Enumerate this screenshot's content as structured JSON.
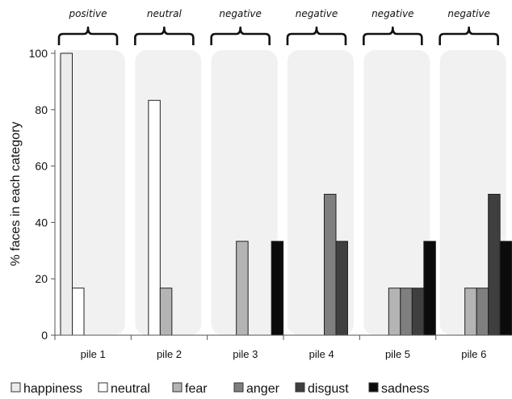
{
  "chart_data": {
    "type": "bar",
    "categories": [
      "pile 1",
      "pile 2",
      "pile 3",
      "pile 4",
      "pile 5",
      "pile 6"
    ],
    "annotations": [
      "positive",
      "neutral",
      "negative",
      "negative",
      "negative",
      "negative"
    ],
    "ylabel": "% faces in each category",
    "xlabel": "",
    "ylim": [
      0,
      100
    ],
    "yticks": [
      0,
      20,
      40,
      60,
      80,
      100
    ],
    "grid": false,
    "legend_position": "bottom",
    "series": [
      {
        "name": "happiness",
        "color": "#ececec",
        "values": [
          100,
          0,
          0,
          0,
          0,
          0
        ]
      },
      {
        "name": "neutral",
        "color": "#ffffff",
        "values": [
          16.7,
          83.3,
          0,
          0,
          0,
          0
        ]
      },
      {
        "name": "fear",
        "color": "#b4b4b4",
        "values": [
          0,
          16.7,
          33.3,
          0,
          16.7,
          16.7
        ]
      },
      {
        "name": "anger",
        "color": "#7f7f7f",
        "values": [
          0,
          0,
          0,
          50,
          16.7,
          16.7
        ]
      },
      {
        "name": "disgust",
        "color": "#3f3f3f",
        "values": [
          0,
          0,
          0,
          33.3,
          16.7,
          50
        ]
      },
      {
        "name": "sadness",
        "color": "#0b0b0b",
        "values": [
          0,
          0,
          33.3,
          0,
          33.3,
          33.3
        ]
      }
    ]
  }
}
